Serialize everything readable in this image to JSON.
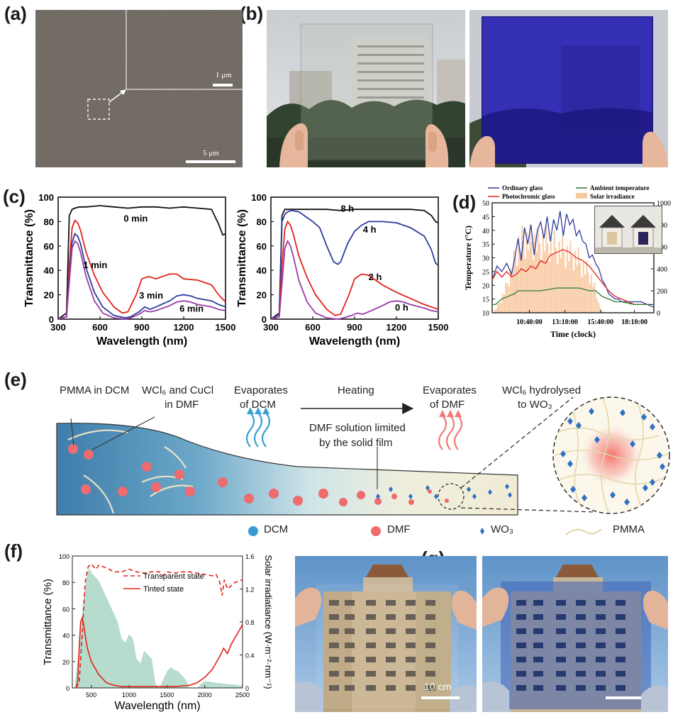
{
  "panel_labels": {
    "a": "(a)",
    "b": "(b)",
    "c": "(c)",
    "d": "(d)",
    "e": "(e)",
    "f": "(f)",
    "g": "(g)"
  },
  "panel_a": {
    "inset_scale": "1 μm",
    "main_scale": "5 μm"
  },
  "panel_g": {
    "scale_label": "10 cm"
  },
  "colors": {
    "black": "#111111",
    "red": "#e2231a",
    "blue": "#2c3c9c",
    "purple": "#9a3aa6",
    "green": "#2e7d32",
    "orange_fill": "#f7c9a0",
    "teal_fill": "#a9d6c6"
  },
  "panel_e": {
    "labels": {
      "pmma_in_dcm": "PMMA in DCM",
      "wcl6_line1": "WCl₆ and CuCl",
      "wcl6_line2": "in DMF",
      "evap_dcm_line1": "Evaporates",
      "evap_dcm_line2": "of DCM",
      "heating": "Heating",
      "evap_dmf_line1": "Evaporates",
      "evap_dmf_line2": "of DMF",
      "hydro_line1": "WCl₆ hydrolysed",
      "hydro_line2": "to WO₃",
      "limited_line1": "DMF solution limited",
      "limited_line2": "by the solid film"
    },
    "legend": [
      "DCM",
      "DMF",
      "WO₃",
      "PMMA"
    ]
  },
  "chart_data": [
    {
      "id": "c-left",
      "type": "line",
      "xlabel": "Wavelength (nm)",
      "ylabel": "Transmittance (%)",
      "xlim": [
        300,
        1500
      ],
      "ylim": [
        0,
        100
      ],
      "xticks": [
        "300",
        "600",
        "900",
        "1200",
        "1500"
      ],
      "yticks": [
        "0",
        "20",
        "40",
        "60",
        "80",
        "100"
      ],
      "series": [
        {
          "name": "0 min",
          "color": "#111111",
          "x": [
            300,
            360,
            380,
            400,
            420,
            450,
            500,
            600,
            700,
            800,
            900,
            1000,
            1100,
            1200,
            1300,
            1400,
            1450,
            1480,
            1500
          ],
          "y": [
            0,
            5,
            85,
            90,
            91,
            92,
            92,
            93,
            92,
            91,
            92,
            92,
            91,
            92,
            91,
            90,
            78,
            69,
            70
          ]
        },
        {
          "name": "1 min",
          "color": "#e2231a",
          "x": [
            300,
            360,
            380,
            400,
            420,
            440,
            460,
            500,
            560,
            620,
            700,
            760,
            800,
            860,
            900,
            950,
            1000,
            1100,
            1150,
            1200,
            1300,
            1400,
            1450,
            1500
          ],
          "y": [
            0,
            2,
            45,
            75,
            81,
            79,
            73,
            55,
            36,
            22,
            10,
            5,
            6,
            20,
            33,
            35,
            33,
            37,
            37,
            33,
            32,
            28,
            20,
            14
          ]
        },
        {
          "name": "3 min",
          "color": "#2c3c9c",
          "x": [
            300,
            360,
            380,
            400,
            420,
            440,
            460,
            500,
            560,
            620,
            700,
            780,
            820,
            880,
            920,
            960,
            1000,
            1100,
            1150,
            1200,
            1250,
            1300,
            1400,
            1450,
            1500
          ],
          "y": [
            0,
            2,
            35,
            63,
            70,
            68,
            62,
            42,
            22,
            10,
            3,
            1,
            2,
            6,
            10,
            8,
            10,
            15,
            19,
            20,
            19,
            17,
            15,
            12,
            10
          ]
        },
        {
          "name": "6 min",
          "color": "#9a3aa6",
          "x": [
            300,
            360,
            380,
            400,
            420,
            440,
            460,
            500,
            560,
            620,
            700,
            780,
            820,
            880,
            920,
            960,
            1000,
            1100,
            1150,
            1200,
            1250,
            1300,
            1400,
            1450,
            1500
          ],
          "y": [
            0,
            2,
            30,
            58,
            64,
            62,
            55,
            35,
            15,
            5,
            1,
            0,
            1,
            4,
            7,
            6,
            7,
            11,
            14,
            15,
            14,
            12,
            10,
            8,
            7
          ]
        }
      ],
      "annotations": [
        "0 min",
        "1 min",
        "3 min",
        "6 min"
      ]
    },
    {
      "id": "c-right",
      "type": "line",
      "xlabel": "Wavelength (nm)",
      "ylabel": "Transmittance (%)",
      "xlim": [
        300,
        1500
      ],
      "ylim": [
        0,
        100
      ],
      "xticks": [
        "300",
        "600",
        "900",
        "1200",
        "1500"
      ],
      "yticks": [
        "0",
        "20",
        "40",
        "60",
        "80",
        "100"
      ],
      "series": [
        {
          "name": "8 h",
          "color": "#111111",
          "x": [
            300,
            360,
            380,
            400,
            420,
            450,
            500,
            600,
            700,
            800,
            900,
            1000,
            1100,
            1200,
            1300,
            1400,
            1450,
            1480,
            1500
          ],
          "y": [
            0,
            5,
            85,
            90,
            90,
            90,
            90,
            90,
            90,
            89,
            90,
            90,
            90,
            90,
            90,
            89,
            85,
            80,
            79
          ]
        },
        {
          "name": "4 h",
          "color": "#2c3c9c",
          "x": [
            300,
            360,
            380,
            400,
            420,
            450,
            500,
            550,
            600,
            650,
            700,
            750,
            780,
            800,
            850,
            900,
            950,
            1000,
            1100,
            1200,
            1300,
            1400,
            1450,
            1480,
            1500
          ],
          "y": [
            0,
            4,
            80,
            86,
            88,
            89,
            88,
            84,
            80,
            75,
            60,
            47,
            45,
            47,
            62,
            72,
            77,
            80,
            80,
            79,
            75,
            68,
            57,
            46,
            44
          ]
        },
        {
          "name": "2 h",
          "color": "#e2231a",
          "x": [
            300,
            360,
            380,
            400,
            420,
            440,
            460,
            500,
            560,
            620,
            700,
            760,
            800,
            860,
            900,
            950,
            1000,
            1100,
            1200,
            1300,
            1400,
            1450,
            1500
          ],
          "y": [
            0,
            2,
            45,
            74,
            80,
            77,
            70,
            52,
            34,
            20,
            8,
            3,
            4,
            20,
            33,
            37,
            36,
            28,
            22,
            17,
            12,
            10,
            8
          ]
        },
        {
          "name": "0 h",
          "color": "#9a3aa6",
          "x": [
            300,
            360,
            380,
            400,
            420,
            440,
            460,
            500,
            560,
            620,
            700,
            780,
            820,
            880,
            920,
            960,
            1000,
            1100,
            1150,
            1200,
            1250,
            1300,
            1400,
            1450,
            1500
          ],
          "y": [
            0,
            2,
            30,
            58,
            64,
            60,
            52,
            32,
            14,
            5,
            1,
            0,
            1,
            3,
            5,
            4,
            6,
            11,
            14,
            15,
            14,
            12,
            9,
            7,
            6
          ]
        }
      ],
      "annotations": [
        "8 h",
        "4 h",
        "2 h",
        "0 h"
      ]
    },
    {
      "id": "d",
      "type": "line",
      "xlabel": "Time (clock)",
      "ylabel": "Temperature (°C)",
      "y2label": "Solar irradiance",
      "xlim": [
        0,
        100
      ],
      "ylim": [
        10,
        50
      ],
      "y2lim": [
        0,
        1000
      ],
      "xticks": [
        "10:40:00",
        "13:10:00",
        "15:40:00",
        "18:10:00"
      ],
      "xtick_positions": [
        23,
        45,
        67,
        88
      ],
      "yticks": [
        "10",
        "15",
        "20",
        "25",
        "30",
        "35",
        "40",
        "45",
        "50"
      ],
      "y2ticks": [
        "0",
        "200",
        "400",
        "600",
        "800",
        "1000"
      ],
      "legend": [
        "Ordinary glass",
        "Photochromic glass",
        "Ambient temperature",
        "Solar irradiance"
      ],
      "series": [
        {
          "name": "Ordinary glass",
          "color": "#2c3c9c",
          "x": [
            0,
            3,
            6,
            9,
            12,
            14,
            16,
            18,
            20,
            22,
            24,
            26,
            28,
            30,
            32,
            34,
            36,
            38,
            40,
            42,
            44,
            46,
            48,
            50,
            52,
            54,
            56,
            58,
            60,
            62,
            64,
            66,
            68,
            70,
            72,
            74,
            76,
            78,
            80,
            84,
            88,
            92,
            96,
            100
          ],
          "y": [
            22,
            27,
            25,
            28,
            24,
            30,
            37,
            29,
            41,
            35,
            42,
            31,
            40,
            43,
            37,
            45,
            36,
            44,
            40,
            47,
            38,
            46,
            42,
            44,
            38,
            40,
            36,
            35,
            30,
            31,
            28,
            26,
            22,
            20,
            17,
            16,
            15,
            15,
            14,
            14,
            14,
            14,
            13,
            13
          ]
        },
        {
          "name": "Photochromic glass",
          "color": "#e2231a",
          "x": [
            0,
            3,
            6,
            9,
            12,
            15,
            18,
            21,
            24,
            27,
            30,
            33,
            36,
            40,
            44,
            48,
            52,
            56,
            60,
            64,
            68,
            72,
            76,
            80,
            84,
            88,
            92,
            96,
            100
          ],
          "y": [
            22,
            25,
            23,
            25,
            23,
            24,
            26,
            25,
            27,
            26,
            29,
            28,
            31,
            32,
            33,
            32,
            30,
            29,
            27,
            24,
            21,
            18,
            16,
            15,
            14,
            13,
            13,
            13,
            12
          ]
        },
        {
          "name": "Ambient temperature",
          "color": "#2e7d32",
          "x": [
            0,
            2,
            4,
            6,
            10,
            14,
            16,
            20,
            30,
            40,
            46,
            50,
            54,
            60,
            64,
            66,
            68,
            72,
            76,
            80,
            88,
            96,
            100
          ],
          "y": [
            13,
            13,
            14,
            15,
            16,
            17,
            18,
            18,
            18,
            19,
            19,
            19,
            19,
            18,
            18,
            17,
            16,
            15,
            14,
            14,
            13,
            13,
            12
          ]
        }
      ],
      "irradiance": {
        "name": "Solar irradiance",
        "color": "#f7c9a0",
        "x": [
          0,
          4,
          8,
          12,
          16,
          20,
          24,
          28,
          32,
          36,
          40,
          44,
          48,
          52,
          56,
          60,
          64,
          66,
          68,
          70
        ],
        "y": [
          0,
          120,
          300,
          550,
          850,
          900,
          880,
          860,
          870,
          840,
          800,
          760,
          720,
          680,
          560,
          480,
          250,
          100,
          20,
          0
        ]
      }
    },
    {
      "id": "f",
      "type": "line",
      "xlabel": "Wavelength (nm)",
      "ylabel": "Transmittance (%)",
      "y2label": "Solar irradiatiance (W·m⁻²·nm⁻¹)",
      "xlim": [
        250,
        2500
      ],
      "ylim": [
        0,
        100
      ],
      "y2lim": [
        0,
        1.6
      ],
      "xticks": [
        "500",
        "1000",
        "1500",
        "2000",
        "2500"
      ],
      "yticks": [
        "0",
        "20",
        "40",
        "60",
        "80",
        "100"
      ],
      "y2ticks": [
        "0",
        "0.4",
        "0.8",
        "1.2",
        "1.6"
      ],
      "legend": [
        "Transparent state",
        "Tinted state"
      ],
      "series": [
        {
          "name": "Transparent state",
          "color": "#e2231a",
          "dash": true,
          "x": [
            300,
            340,
            380,
            420,
            460,
            500,
            560,
            600,
            700,
            800,
            900,
            1000,
            1100,
            1200,
            1300,
            1400,
            1450,
            1500,
            1600,
            1700,
            1800,
            1900,
            2000,
            2100,
            2150,
            2200,
            2230,
            2260,
            2300,
            2400,
            2500
          ],
          "y": [
            0,
            4,
            40,
            80,
            92,
            94,
            90,
            93,
            91,
            88,
            88,
            90,
            88,
            87,
            88,
            88,
            85,
            88,
            87,
            88,
            88,
            87,
            86,
            85,
            86,
            80,
            70,
            82,
            75,
            80,
            82
          ]
        },
        {
          "name": "Tinted state",
          "color": "#e2231a",
          "dash": false,
          "x": [
            300,
            320,
            340,
            360,
            380,
            400,
            420,
            450,
            500,
            600,
            700,
            800,
            900,
            1000,
            1200,
            1400,
            1600,
            1800,
            1900,
            2000,
            2100,
            2200,
            2250,
            2300,
            2350,
            2400,
            2450,
            2500
          ],
          "y": [
            0,
            5,
            30,
            50,
            53,
            48,
            40,
            30,
            20,
            10,
            4,
            2,
            1,
            1,
            1,
            1,
            1,
            2,
            4,
            8,
            14,
            24,
            30,
            26,
            33,
            38,
            43,
            48
          ]
        }
      ],
      "irradiance": {
        "name": "Solar irradiance",
        "color": "#a9d6c6",
        "x": [
          280,
          350,
          400,
          450,
          480,
          500,
          550,
          600,
          650,
          700,
          750,
          800,
          850,
          900,
          950,
          1000,
          1050,
          1100,
          1150,
          1200,
          1250,
          1300,
          1350,
          1400,
          1450,
          1500,
          1550,
          1600,
          1650,
          1700,
          1750,
          1800,
          1850,
          1900,
          1950,
          2000,
          2050,
          2100,
          2150,
          2200,
          2250,
          2300,
          2350,
          2400,
          2450,
          2500
        ],
        "y": [
          0,
          0.6,
          1.1,
          1.4,
          1.45,
          1.4,
          1.35,
          1.3,
          1.2,
          1.1,
          1.0,
          0.9,
          0.8,
          0.6,
          0.55,
          0.65,
          0.6,
          0.35,
          0.3,
          0.45,
          0.4,
          0.35,
          0.05,
          0.0,
          0.1,
          0.2,
          0.25,
          0.22,
          0.2,
          0.15,
          0.1,
          0.0,
          0.0,
          0.0,
          0.05,
          0.08,
          0.08,
          0.07,
          0.06,
          0.06,
          0.05,
          0.05,
          0.04,
          0.04,
          0.03,
          0.03
        ]
      }
    }
  ]
}
